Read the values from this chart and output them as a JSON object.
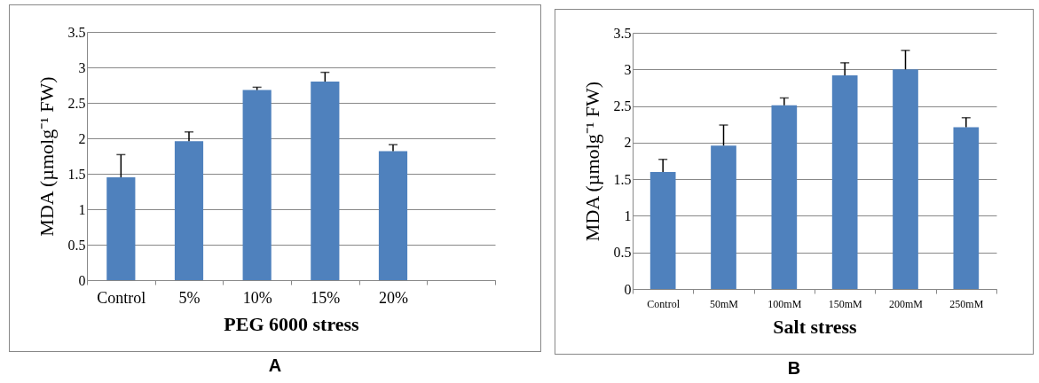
{
  "chart_data": [
    {
      "type": "bar",
      "categories": [
        "Control",
        "5%",
        "10%",
        "15%",
        "20%",
        null
      ],
      "xlabel": "PEG 6000 stress",
      "ylabel": "MDA  (µmolg⁻¹ FW)",
      "annotations": [
        "A"
      ],
      "series": [
        {
          "color": "#4f81bd",
          "values": [
            1.45,
            1.96,
            2.68,
            2.8,
            1.82,
            null
          ],
          "errors": [
            [
              1.45,
              1.77
            ],
            [
              1.96,
              2.09
            ],
            [
              2.68,
              2.72
            ],
            [
              2.8,
              2.93
            ],
            [
              1.82,
              1.91
            ],
            null
          ]
        }
      ],
      "ylim": [
        0,
        3.5
      ],
      "yticks": [
        0,
        0.5,
        1,
        1.5,
        2,
        2.5,
        3,
        3.5
      ],
      "grid": "y",
      "legend": false
    },
    {
      "type": "bar",
      "categories": [
        "Control",
        "50mM",
        "100mM",
        "150mM",
        "200mM",
        "250mM"
      ],
      "xlabel": "Salt stress",
      "ylabel": "MDA  (µmolg⁻¹ FW)",
      "annotations": [
        "B"
      ],
      "series": [
        {
          "color": "#4f81bd",
          "values": [
            1.6,
            1.96,
            2.51,
            2.92,
            3.0,
            2.21
          ],
          "errors": [
            [
              1.6,
              1.77
            ],
            [
              1.96,
              2.24
            ],
            [
              2.51,
              2.61
            ],
            [
              2.92,
              3.09
            ],
            [
              3.0,
              3.26
            ],
            [
              2.21,
              2.34
            ]
          ]
        }
      ],
      "ylim": [
        0,
        3.5
      ],
      "yticks": [
        0,
        0.5,
        1,
        1.5,
        2,
        2.5,
        3,
        3.5
      ],
      "grid": "y",
      "legend": false
    }
  ]
}
